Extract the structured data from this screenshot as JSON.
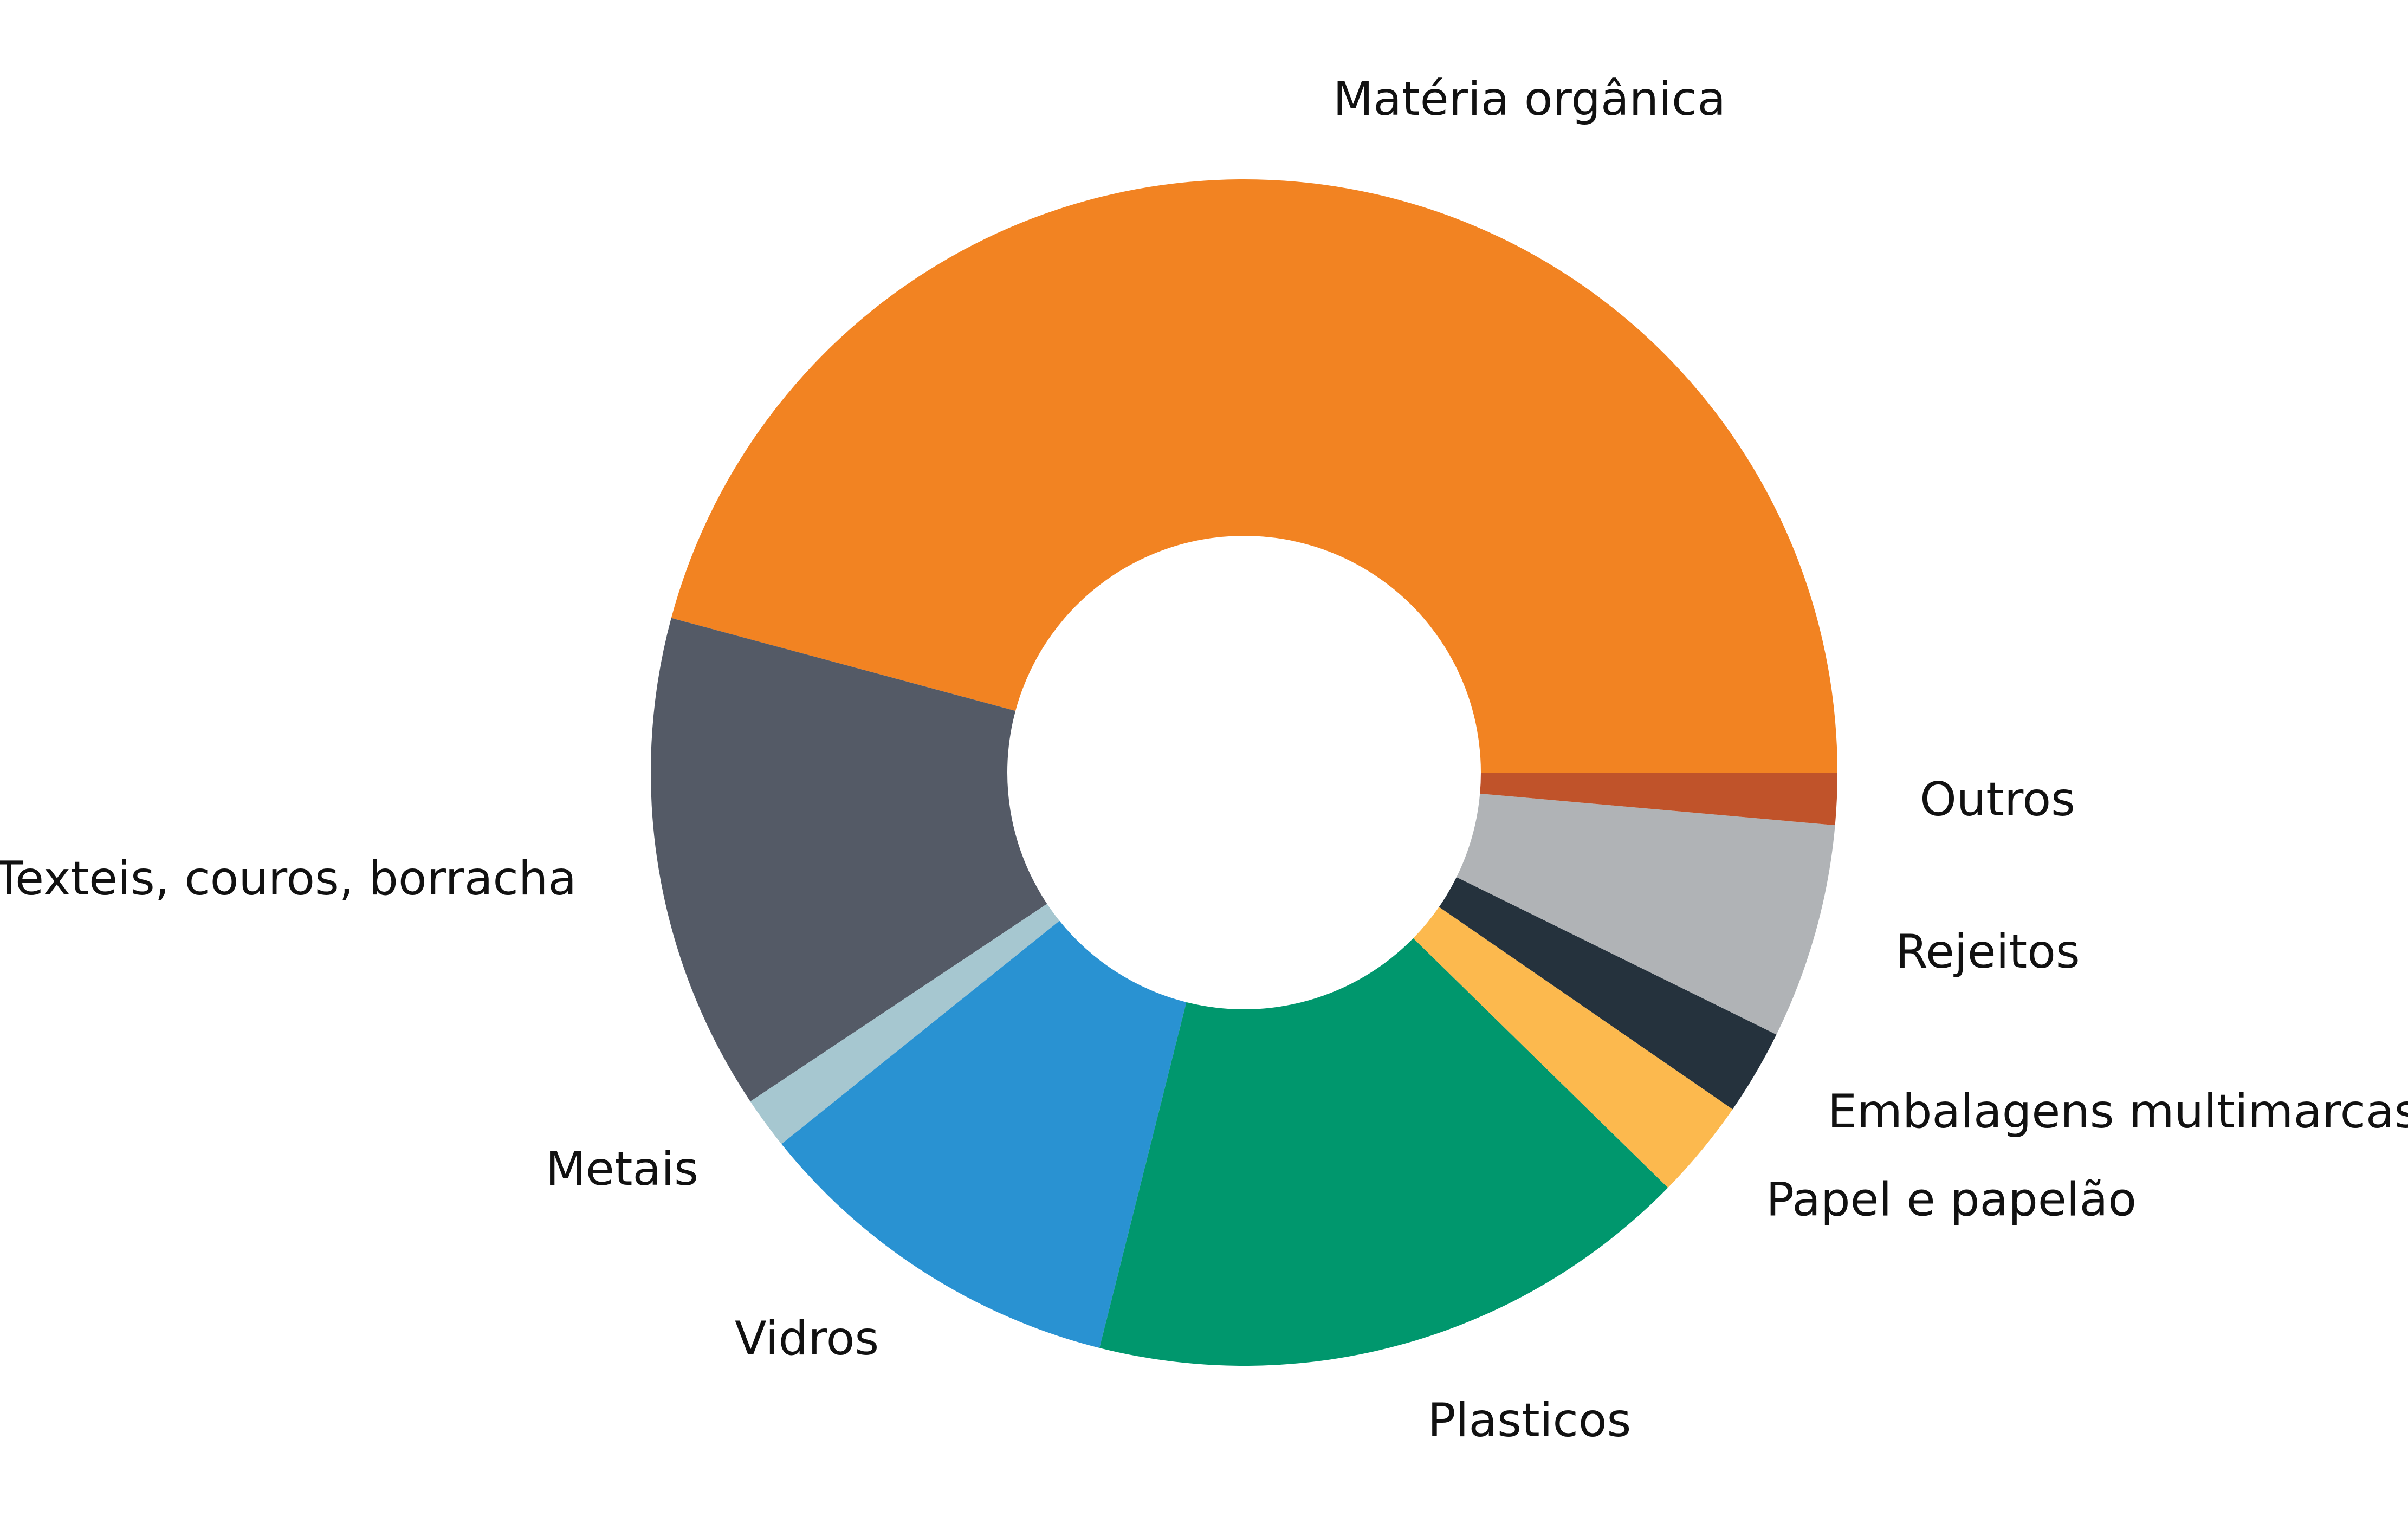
{
  "chart_data": {
    "type": "pie",
    "style": "donut",
    "direction": "counterclockwise",
    "start": "3 o'clock",
    "legend": "none",
    "slices": [
      {
        "label": "Matéria orgânica",
        "value": 45.3,
        "color": "#F28322"
      },
      {
        "label": "Texteis, couros, borracha",
        "value": 13.4,
        "color": "#545A66"
      },
      {
        "label": "Metais",
        "value": 1.4,
        "color": "#A6C7D0"
      },
      {
        "label": "Vidros",
        "value": 10.2,
        "color": "#2992D2"
      },
      {
        "label": "Plasticos",
        "value": 16.4,
        "color": "#00976D"
      },
      {
        "label": "Papel e papelão",
        "value": 2.7,
        "color": "#FCB94E"
      },
      {
        "label": "Embalagens multimarcas",
        "value": 2.3,
        "color": "#25323D"
      },
      {
        "label": "Rejeitos",
        "value": 5.8,
        "color": "#B0B3B6"
      },
      {
        "label": "Outros",
        "value": 1.4,
        "color": "#C0532A"
      }
    ]
  }
}
